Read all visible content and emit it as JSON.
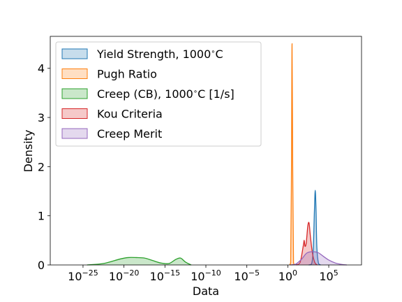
{
  "chart_data": {
    "type": "area",
    "xlabel": "Data",
    "ylabel": "Density",
    "x_scale": "log10",
    "xlim_log10": [
      -29,
      9
    ],
    "ylim": [
      0,
      4.65
    ],
    "x_ticks": [
      {
        "exp": -25,
        "base": "10",
        "sup": "−25"
      },
      {
        "exp": -20,
        "base": "10",
        "sup": "−20"
      },
      {
        "exp": -15,
        "base": "10",
        "sup": "−15"
      },
      {
        "exp": -10,
        "base": "10",
        "sup": "−10"
      },
      {
        "exp": -5,
        "base": "10",
        "sup": "−5"
      },
      {
        "exp": 0,
        "base": "10",
        "sup": "0"
      },
      {
        "exp": 5,
        "base": "10",
        "sup": "5"
      }
    ],
    "y_ticks": [
      0,
      1,
      2,
      3,
      4
    ],
    "legend_position": "upper-left",
    "series": [
      {
        "name": "Yield Strength, 1000$^\\circ$C",
        "color": "#1f77b4",
        "log10_x": [
          2.55,
          2.9,
          3.1,
          3.25,
          3.35,
          3.45,
          3.55,
          3.75,
          4.0
        ],
        "density": [
          0,
          0.02,
          0.3,
          1.1,
          1.52,
          1.1,
          0.35,
          0.03,
          0
        ]
      },
      {
        "name": "Pugh Ratio",
        "color": "#ff7f0e",
        "log10_x": [
          0.2,
          0.35,
          0.45,
          0.52,
          0.6,
          0.7,
          0.85
        ],
        "density": [
          0,
          0.05,
          2.0,
          4.5,
          2.0,
          0.05,
          0
        ]
      },
      {
        "name": "Creep (CB), 1000$^\\circ$C [1/s]",
        "color": "#2ca02c",
        "log10_x": [
          -24.5,
          -22.5,
          -20.5,
          -19.5,
          -18.5,
          -17.5,
          -16.5,
          -15.5,
          -14.5,
          -13.7,
          -13.1,
          -12.5,
          -11.8
        ],
        "density": [
          0,
          0.03,
          0.12,
          0.15,
          0.15,
          0.14,
          0.09,
          0.04,
          0.03,
          0.11,
          0.14,
          0.06,
          0
        ]
      },
      {
        "name": "Kou Criteria",
        "color": "#d62728",
        "log10_x": [
          1.0,
          1.5,
          1.9,
          2.0,
          2.1,
          2.25,
          2.45,
          2.6,
          2.75,
          3.0,
          3.3,
          3.6
        ],
        "density": [
          0,
          0.05,
          0.4,
          0.5,
          0.38,
          0.45,
          0.8,
          0.85,
          0.6,
          0.25,
          0.05,
          0
        ]
      },
      {
        "name": "Creep Merit",
        "color": "#9467bd",
        "log10_x": [
          0.3,
          1.0,
          1.7,
          2.3,
          3.0,
          3.7,
          4.3,
          5.0,
          5.8,
          6.6,
          7.2
        ],
        "density": [
          0,
          0.02,
          0.12,
          0.24,
          0.27,
          0.25,
          0.18,
          0.1,
          0.04,
          0.01,
          0
        ]
      }
    ],
    "legend_labels": [
      "Yield Strength, 1000$^\\circ$C",
      "Pugh Ratio",
      "Creep (CB), 1000$^\\circ$C [1/s]",
      "Kou Criteria",
      "Creep Merit"
    ]
  }
}
